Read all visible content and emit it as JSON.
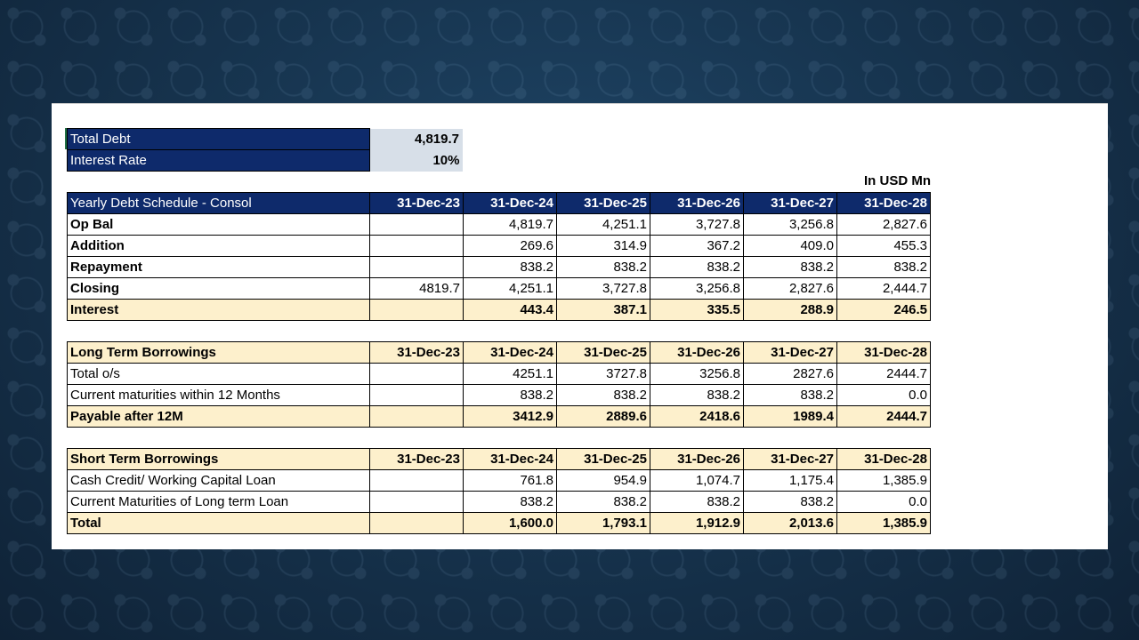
{
  "summary": {
    "total_debt_label": "Total Debt",
    "total_debt_value": "4,819.7",
    "interest_rate_label": "Interest Rate",
    "interest_rate_value": "10%"
  },
  "unit_label": "In USD Mn",
  "tables": [
    {
      "header": [
        "Yearly Debt Schedule - Consol",
        "31-Dec-23",
        "31-Dec-24",
        "31-Dec-25",
        "31-Dec-26",
        "31-Dec-27",
        "31-Dec-28"
      ],
      "rows": [
        [
          "Op Bal",
          "",
          "4,819.7",
          "4,251.1",
          "3,727.8",
          "3,256.8",
          "2,827.6"
        ],
        [
          "Addition",
          "",
          "269.6",
          "314.9",
          "367.2",
          "409.0",
          "455.3"
        ],
        [
          "Repayment",
          "",
          "838.2",
          "838.2",
          "838.2",
          "838.2",
          "838.2"
        ],
        [
          "Closing",
          "4819.7",
          "4,251.1",
          "3,727.8",
          "3,256.8",
          "2,827.6",
          "2,444.7"
        ]
      ],
      "total": [
        "Interest",
        "",
        "443.4",
        "387.1",
        "335.5",
        "288.9",
        "246.5"
      ]
    },
    {
      "header": [
        "Long Term Borrowings",
        "31-Dec-23",
        "31-Dec-24",
        "31-Dec-25",
        "31-Dec-26",
        "31-Dec-27",
        "31-Dec-28"
      ],
      "rows": [
        [
          "Total o/s",
          "",
          "4251.1",
          "3727.8",
          "3256.8",
          "2827.6",
          "2444.7"
        ],
        [
          "Current maturities within 12 Months",
          "",
          "838.2",
          "838.2",
          "838.2",
          "838.2",
          "0.0"
        ]
      ],
      "total": [
        "Payable after 12M",
        "",
        "3412.9",
        "2889.6",
        "2418.6",
        "1989.4",
        "2444.7"
      ]
    },
    {
      "header": [
        "Short Term Borrowings",
        "31-Dec-23",
        "31-Dec-24",
        "31-Dec-25",
        "31-Dec-26",
        "31-Dec-27",
        "31-Dec-28"
      ],
      "rows": [
        [
          "Cash Credit/ Working Capital Loan",
          "",
          "761.8",
          "954.9",
          "1,074.7",
          "1,175.4",
          "1,385.9"
        ],
        [
          "Current Maturities of Long term Loan",
          "",
          "838.2",
          "838.2",
          "838.2",
          "838.2",
          "0.0"
        ]
      ],
      "total": [
        "Total",
        "",
        "1,600.0",
        "1,793.1",
        "1,912.9",
        "2,013.6",
        "1,385.9"
      ]
    }
  ]
}
